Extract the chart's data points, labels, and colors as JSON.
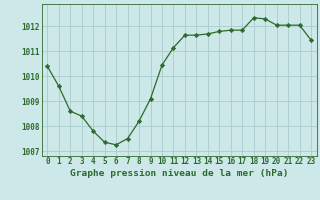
{
  "x": [
    0,
    1,
    2,
    3,
    4,
    5,
    6,
    7,
    8,
    9,
    10,
    11,
    12,
    13,
    14,
    15,
    16,
    17,
    18,
    19,
    20,
    21,
    22,
    23
  ],
  "y": [
    1010.4,
    1009.6,
    1008.6,
    1008.4,
    1007.8,
    1007.35,
    1007.25,
    1007.5,
    1008.2,
    1009.1,
    1010.45,
    1011.15,
    1011.65,
    1011.65,
    1011.7,
    1011.8,
    1011.85,
    1011.85,
    1012.35,
    1012.3,
    1012.05,
    1012.05,
    1012.05,
    1011.45
  ],
  "line_color": "#2d6a2d",
  "marker": "D",
  "marker_size": 2.2,
  "bg_color": "#cce8e8",
  "grid_color": "#aacccc",
  "xlabel": "Graphe pression niveau de la mer (hPa)",
  "xlabel_color": "#2d6a2d",
  "tick_color": "#2d6a2d",
  "ylim": [
    1006.8,
    1012.9
  ],
  "yticks": [
    1007,
    1008,
    1009,
    1010,
    1011,
    1012
  ],
  "xticks": [
    0,
    1,
    2,
    3,
    4,
    5,
    6,
    7,
    8,
    9,
    10,
    11,
    12,
    13,
    14,
    15,
    16,
    17,
    18,
    19,
    20,
    21,
    22,
    23
  ],
  "tick_fontsize": 5.5,
  "xlabel_fontsize": 6.8,
  "line_width": 0.9
}
